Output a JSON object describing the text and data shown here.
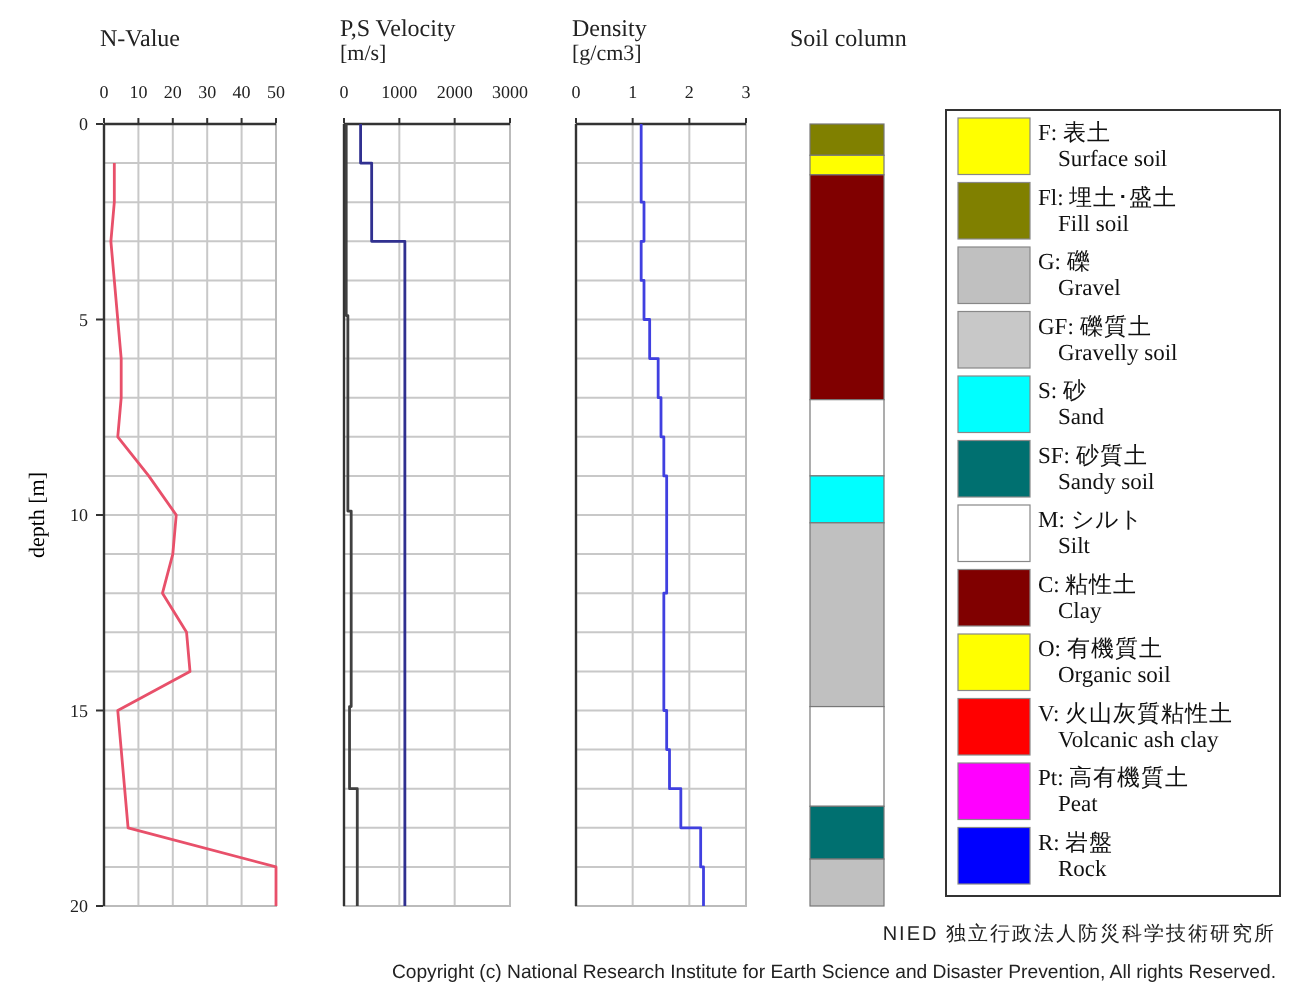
{
  "chart_data": [
    {
      "type": "line",
      "title": "N-Value",
      "ylabel": "depth [m]",
      "orientation": "horizontal",
      "grid": true,
      "xlim": [
        0,
        50
      ],
      "xticks": [
        0,
        10,
        20,
        30,
        40,
        50
      ],
      "ylim": [
        20,
        0
      ],
      "yticks": [
        0,
        {
          "value": 1,
          "label": null
        },
        {
          "value": 2,
          "label": null
        },
        {
          "value": 3,
          "label": null
        },
        {
          "value": 4,
          "label": null
        },
        5,
        {
          "value": 6,
          "label": null
        },
        {
          "value": 7,
          "label": null
        },
        {
          "value": 8,
          "label": null
        },
        {
          "value": 9,
          "label": null
        },
        10,
        {
          "value": 11,
          "label": null
        },
        {
          "value": 12,
          "label": null
        },
        {
          "value": 13,
          "label": null
        },
        {
          "value": 14,
          "label": null
        },
        15,
        {
          "value": 16,
          "label": null
        },
        {
          "value": 17,
          "label": null
        },
        {
          "value": 18,
          "label": null
        },
        {
          "value": 19,
          "label": null
        },
        20
      ],
      "series": [
        {
          "color": "#e8506a",
          "x": [
            1,
            2,
            3,
            4,
            5,
            6,
            7,
            8,
            9,
            10,
            11,
            12,
            13,
            14,
            15,
            16,
            17,
            18,
            19,
            20
          ],
          "values": [
            3,
            3,
            2,
            3,
            4,
            5,
            5,
            4,
            13,
            21,
            20,
            17,
            24,
            25,
            4,
            5,
            6,
            7,
            50,
            50
          ]
        }
      ]
    },
    {
      "type": "step",
      "title": "P,S Velocity",
      "subtitle": "[m/s]",
      "orientation": "horizontal",
      "grid": true,
      "tick_labels": "x",
      "xlim": [
        0,
        3000
      ],
      "xticks": [
        0,
        1000,
        2000,
        3000
      ],
      "ylim": [
        20,
        0
      ],
      "yticks": [
        {
          "value": 0,
          "label": null
        },
        {
          "value": 1,
          "label": null
        },
        {
          "value": 2,
          "label": null
        },
        {
          "value": 3,
          "label": null
        },
        {
          "value": 4,
          "label": null
        },
        {
          "value": 5,
          "label": null
        },
        {
          "value": 6,
          "label": null
        },
        {
          "value": 7,
          "label": null
        },
        {
          "value": 8,
          "label": null
        },
        {
          "value": 9,
          "label": null
        },
        {
          "value": 10,
          "label": null
        },
        {
          "value": 11,
          "label": null
        },
        {
          "value": 12,
          "label": null
        },
        {
          "value": 13,
          "label": null
        },
        {
          "value": 14,
          "label": null
        },
        {
          "value": 15,
          "label": null
        },
        {
          "value": 16,
          "label": null
        },
        {
          "value": 17,
          "label": null
        },
        {
          "value": 18,
          "label": null
        },
        {
          "value": 19,
          "label": null
        },
        {
          "value": 20,
          "label": null
        }
      ],
      "series": [
        {
          "color": "#303090",
          "x": [
            0,
            1,
            3,
            20
          ],
          "values": [
            300,
            500,
            1100,
            1100
          ]
        },
        {
          "color": "#404040",
          "x": [
            0,
            4.9,
            9.9,
            14.9,
            17,
            20
          ],
          "values": [
            40,
            70,
            130,
            100,
            240,
            240
          ]
        }
      ]
    },
    {
      "type": "step",
      "title": "Density",
      "subtitle": "[g/cm3]",
      "orientation": "horizontal",
      "grid": true,
      "tick_labels": "x",
      "xlim": [
        0,
        3
      ],
      "xticks": [
        0,
        1,
        2,
        3
      ],
      "ylim": [
        20,
        0
      ],
      "yticks": [
        {
          "value": 0,
          "label": null
        },
        {
          "value": 1,
          "label": null
        },
        {
          "value": 2,
          "label": null
        },
        {
          "value": 3,
          "label": null
        },
        {
          "value": 4,
          "label": null
        },
        {
          "value": 5,
          "label": null
        },
        {
          "value": 6,
          "label": null
        },
        {
          "value": 7,
          "label": null
        },
        {
          "value": 8,
          "label": null
        },
        {
          "value": 9,
          "label": null
        },
        {
          "value": 10,
          "label": null
        },
        {
          "value": 11,
          "label": null
        },
        {
          "value": 12,
          "label": null
        },
        {
          "value": 13,
          "label": null
        },
        {
          "value": 14,
          "label": null
        },
        {
          "value": 15,
          "label": null
        },
        {
          "value": 16,
          "label": null
        },
        {
          "value": 17,
          "label": null
        },
        {
          "value": 18,
          "label": null
        },
        {
          "value": 19,
          "label": null
        },
        {
          "value": 20,
          "label": null
        }
      ],
      "series": [
        {
          "color": "#4040e0",
          "x": [
            0,
            2,
            3,
            4,
            5,
            6,
            7,
            8,
            9,
            12,
            15,
            16,
            17,
            18,
            19,
            20
          ],
          "values": [
            1.15,
            1.2,
            1.15,
            1.2,
            1.3,
            1.45,
            1.5,
            1.55,
            1.6,
            1.55,
            1.6,
            1.65,
            1.85,
            2.2,
            2.25,
            2.25
          ]
        }
      ]
    },
    {
      "type": "bar",
      "title": "Soil column",
      "stacked": true,
      "tick_labels": false,
      "categories": [
        null
      ],
      "ylim": [
        20,
        0
      ],
      "annotations": [
        "NIED 独立行政法人防災科学技術研究所",
        "Copyright (c) National Research Institute for Earth Science and Disaster Prevention, All rights Reserved."
      ],
      "series": [
        {
          "color": "#808000",
          "values": [
            0.8
          ]
        },
        {
          "color": "#ffff00",
          "values": [
            0.5
          ]
        },
        {
          "color": "#800000",
          "values": [
            5.75
          ]
        },
        {
          "color": "#ffffff",
          "values": [
            1.95
          ]
        },
        {
          "color": "#00ffff",
          "values": [
            1.2
          ]
        },
        {
          "color": "#c0c0c0",
          "values": [
            4.7
          ]
        },
        {
          "color": "#ffffff",
          "values": [
            2.55
          ]
        },
        {
          "color": "#007070",
          "values": [
            1.35
          ]
        },
        {
          "color": "#c0c0c0",
          "values": [
            1.2
          ]
        }
      ]
    },
    {
      "type": "other",
      "annotations": [
        "F: 表土\nSurface soil",
        "Fl: 埋土･盛土\nFill soil",
        "G: 礫\nGravel",
        "GF: 礫質土\nGravelly soil",
        "S: 砂\nSand",
        "SF: 砂質土\nSandy soil",
        "M: シルト\nSilt",
        "C: 粘性土\nClay",
        "O: 有機質土\nOrganic soil",
        "V: 火山灰質粘性土\nVolcanic ash clay",
        "Pt: 高有機質土\nPeat",
        "R: 岩盤\nRock"
      ],
      "colors": [
        "#ffff00",
        "#808000",
        "#c0c0c0",
        "#c8c8c8",
        "#00ffff",
        "#007070",
        "#ffffff",
        "#800000",
        "#ffff00",
        "#ff0000",
        "#ff00ff",
        "#0000ff"
      ]
    }
  ]
}
